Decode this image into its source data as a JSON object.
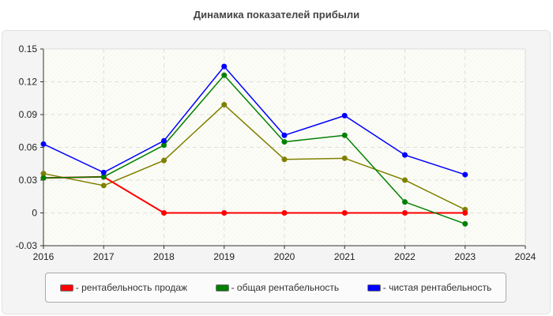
{
  "chart_data": {
    "type": "line",
    "title": "Динамика показателей прибыли",
    "x": [
      2016,
      2017,
      2018,
      2019,
      2020,
      2021,
      2022,
      2023
    ],
    "xlim": [
      2016,
      2024
    ],
    "xticks": [
      "2016",
      "2017",
      "2018",
      "2019",
      "2020",
      "2021",
      "2022",
      "2023",
      "2024"
    ],
    "ylim": [
      -0.03,
      0.15
    ],
    "yticks": [
      "-0.03",
      "0",
      "0.03",
      "0.06",
      "0.09",
      "0.12",
      "0.15"
    ],
    "grid": true,
    "legend_position": "bottom",
    "series": [
      {
        "color": "#808000",
        "values": [
          0.036,
          0.025,
          0.048,
          0.099,
          0.049,
          0.05,
          0.03,
          0.003
        ]
      },
      {
        "name": "- рентабельность продаж",
        "color": "#ff0000",
        "values": [
          0.032,
          0.033,
          0,
          0,
          0,
          0,
          0,
          0
        ]
      },
      {
        "name": "- общая рентабельность",
        "color": "#008000",
        "values": [
          0.032,
          0.033,
          0.062,
          0.126,
          0.065,
          0.071,
          0.01,
          -0.01
        ]
      },
      {
        "name": "- чистая рентабельность",
        "color": "#0000ff",
        "values": [
          0.063,
          0.037,
          0.066,
          0.134,
          0.071,
          0.089,
          0.053,
          0.035
        ]
      }
    ]
  }
}
